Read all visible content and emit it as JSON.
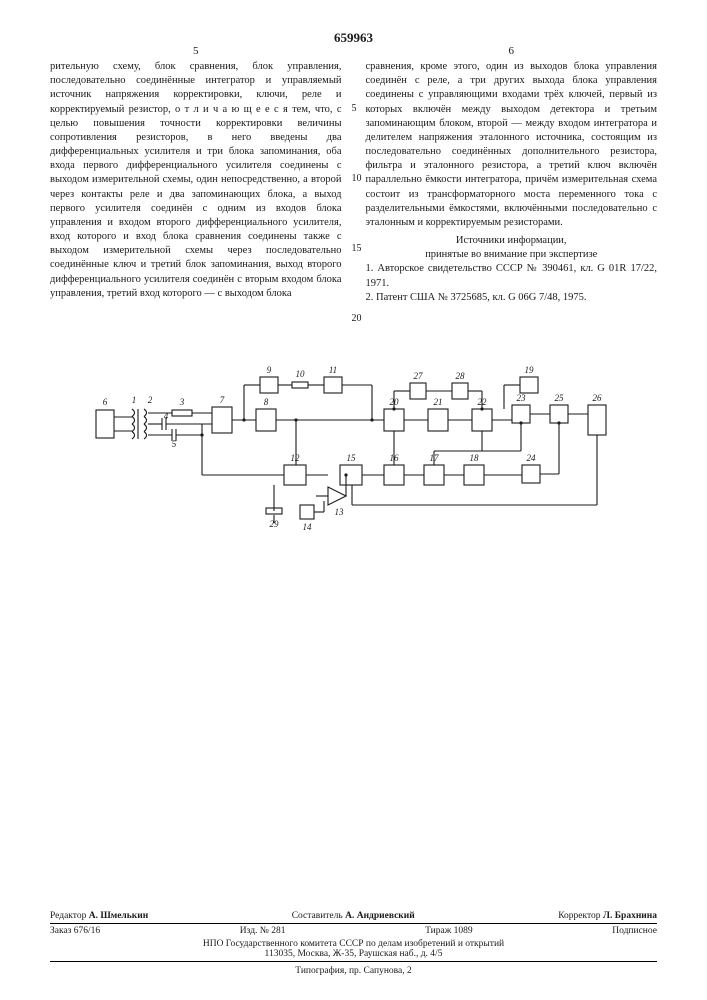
{
  "patent_number": "659963",
  "columns": {
    "left": {
      "number": "5",
      "text": "рительную схему, блок сравнения, блок управления, последовательно соединённые интегратор и управляемый источник напряжения корректировки, ключи, реле и корректируемый резистор, о т л и ч а ю щ е е с я тем, что, с целью повышения точности корректировки величины сопротивления резисторов, в него введены два дифференциальных усилителя и три блока запоминания, оба входа первого дифференциального усилителя соединены с выходом измерительной схемы, один непосредственно, а второй через контакты реле и два запоминающих блока, а выход первого усилителя соединён с одним из входов блока управления и входом второго дифференциального усилителя, вход которого и вход блока сравнения соединены также с выходом измерительной схемы через последовательно соединённые ключ и третий блок запоминания, выход второго дифференциального усилителя соединён с вторым входом блока управления, третий вход которого — с выходом блока"
    },
    "right": {
      "number": "6",
      "text": "сравнения, кроме этого, один из выходов блока управления соединён с реле, а три других выхода блока управления соединены с управляющими входами трёх ключей, первый из которых включён между выходом детектора и третьим запоминающим блоком, второй — между входом интегратора и делителем напряжения эталонного источника, состоящим из последовательно соединённых дополнительного резистора, фильтра и эталонного резистора, а третий ключ включён параллельно ёмкости интегратора, причём измерительная схема состоит из трансформаторного моста переменного тока с разделительными ёмкостями, включёнными последовательно с эталонным и корректируемым резисторами.",
      "sources_heading": "Источники информации,\nпринятые во внимание при экспертизе",
      "source1": "1. Авторское свидетельство СССР № 390461, кл. G 01R 17/22, 1971.",
      "source2": "2. Патент США № 3725685, кл. G 06G 7/48, 1975."
    },
    "line_markers": [
      "5",
      "10",
      "15",
      "20"
    ]
  },
  "diagram": {
    "node_labels": [
      "1",
      "2",
      "3",
      "4",
      "5",
      "6",
      "7",
      "8",
      "9",
      "10",
      "11",
      "12",
      "13",
      "14",
      "15",
      "16",
      "17",
      "18",
      "19",
      "20",
      "21",
      "22",
      "23",
      "24",
      "25",
      "26",
      "27",
      "28",
      "29"
    ],
    "stroke": "#1a1a1a",
    "stroke_width": 1.1,
    "font_size": 9
  },
  "footer": {
    "editor_label": "Редактор",
    "editor_name": "А. Шмелькин",
    "compiler_label": "Составитель",
    "compiler_name": "А. Андриевский",
    "corrector_label": "Корректор",
    "corrector_name": "Л. Брахнина",
    "order": "Заказ 676/16",
    "izd": "Изд. № 281",
    "tirazh": "Тираж 1089",
    "podpis": "Подписное",
    "org": "НПО Государственного комитета СССР по делам изобретений и открытий",
    "address": "113035, Москва, Ж-35, Раушская наб., д. 4/5",
    "typography": "Типография, пр. Сапунова, 2"
  }
}
